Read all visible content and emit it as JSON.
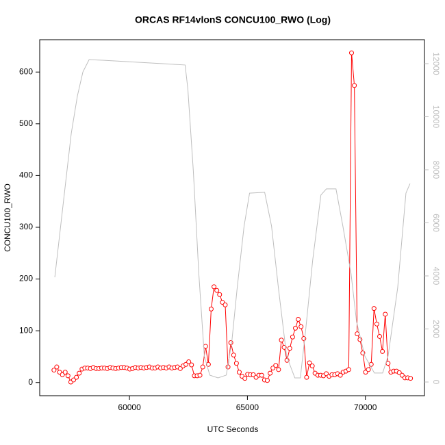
{
  "chart_data": {
    "type": "line",
    "title": "ORCAS RF14vlonS CONCU100_RWO (Log)",
    "x_label": "UTC Seconds",
    "y_label": "CONCU100_RWO",
    "xlim": [
      56196,
      72504
    ],
    "xticks": [
      60000,
      65000,
      70000
    ],
    "ylim": [
      -25.5,
      662.5
    ],
    "yticks": [
      0,
      100,
      200,
      300,
      400,
      500,
      600
    ],
    "y2lim": [
      -516,
      12903
    ],
    "y2ticks": [
      0,
      2000,
      4000,
      6000,
      8000,
      10000,
      12000
    ],
    "series": [
      {
        "color": "#ff0000",
        "marker": "circle",
        "x": [
          56800,
          56919,
          57038,
          57157,
          57276,
          57395,
          57514,
          57633,
          57752,
          57871,
          57990,
          58109,
          58228,
          58347,
          58466,
          58585,
          58704,
          58823,
          58942,
          59061,
          59180,
          59299,
          59418,
          59537,
          59656,
          59775,
          59894,
          60013,
          60132,
          60251,
          60370,
          60489,
          60608,
          60727,
          60846,
          60965,
          61084,
          61203,
          61322,
          61441,
          61560,
          61679,
          61798,
          61917,
          62036,
          62155,
          62274,
          62393,
          62512,
          62631,
          62750,
          62869,
          62988,
          63107,
          63226,
          63345,
          63464,
          63583,
          63702,
          63821,
          63940,
          64059,
          64178,
          64297,
          64416,
          64535,
          64654,
          64773,
          64892,
          65011,
          65130,
          65249,
          65368,
          65487,
          65606,
          65725,
          65844,
          65963,
          66082,
          66201,
          66320,
          66439,
          66558,
          66677,
          66796,
          66915,
          67034,
          67153,
          67272,
          67391,
          67510,
          67629,
          67748,
          67867,
          67986,
          68105,
          68224,
          68343,
          68462,
          68581,
          68700,
          68819,
          68938,
          69057,
          69176,
          69295,
          69414,
          69533,
          69652,
          69771,
          69890,
          70009,
          70128,
          70247,
          70366,
          70485,
          70604,
          70723,
          70842,
          70961,
          71080,
          71199,
          71318,
          71437,
          71556,
          71675,
          71794,
          71913
        ],
        "values": [
          24,
          30,
          20,
          15,
          20,
          13,
          1,
          5,
          10,
          18,
          26,
          28,
          28,
          27,
          29,
          27,
          27,
          28,
          28,
          27,
          29,
          28,
          27,
          28,
          29,
          29,
          28,
          26,
          27,
          29,
          28,
          29,
          28,
          29,
          30,
          28,
          28,
          30,
          28,
          29,
          28,
          30,
          28,
          29,
          30,
          27,
          32,
          35,
          40,
          34,
          13,
          13,
          14,
          30,
          70,
          35,
          142,
          185,
          178,
          170,
          155,
          150,
          30,
          77,
          53,
          37,
          20,
          12,
          8,
          16,
          15,
          15,
          10,
          14,
          14,
          5,
          4,
          18,
          28,
          33,
          25,
          82,
          68,
          43,
          66,
          88,
          105,
          122,
          108,
          85,
          10,
          38,
          32,
          18,
          14,
          14,
          13,
          17,
          12,
          15,
          15,
          17,
          14,
          20,
          22,
          25,
          637,
          574,
          94,
          83,
          57,
          20,
          25,
          35,
          143,
          113,
          89,
          60,
          132,
          37,
          20,
          22,
          22,
          19,
          14,
          9,
          9,
          8
        ]
      },
      {
        "color": "#bebebe",
        "axis": "y2",
        "x": [
          56836,
          57184,
          57533,
          57795,
          58027,
          58289,
          58870,
          62359,
          62475,
          62708,
          62940,
          63173,
          63405,
          63754,
          64103,
          64336,
          64568,
          64859,
          65091,
          65731,
          66022,
          66312,
          66661,
          67010,
          67243,
          67475,
          67766,
          68115,
          68347,
          68754,
          69045,
          69393,
          69626,
          69975,
          70382,
          70731,
          70963,
          71370,
          71719,
          71893
        ],
        "values": [
          3950,
          6660,
          9370,
          10790,
          11690,
          12150,
          12130,
          11950,
          11050,
          7950,
          4080,
          980,
          260,
          155,
          260,
          1500,
          3560,
          5880,
          7120,
          7150,
          5880,
          3560,
          980,
          155,
          155,
          2010,
          4590,
          7050,
          7280,
          7280,
          5880,
          4080,
          2270,
          980,
          340,
          340,
          980,
          3560,
          7120,
          7480
        ]
      }
    ]
  }
}
